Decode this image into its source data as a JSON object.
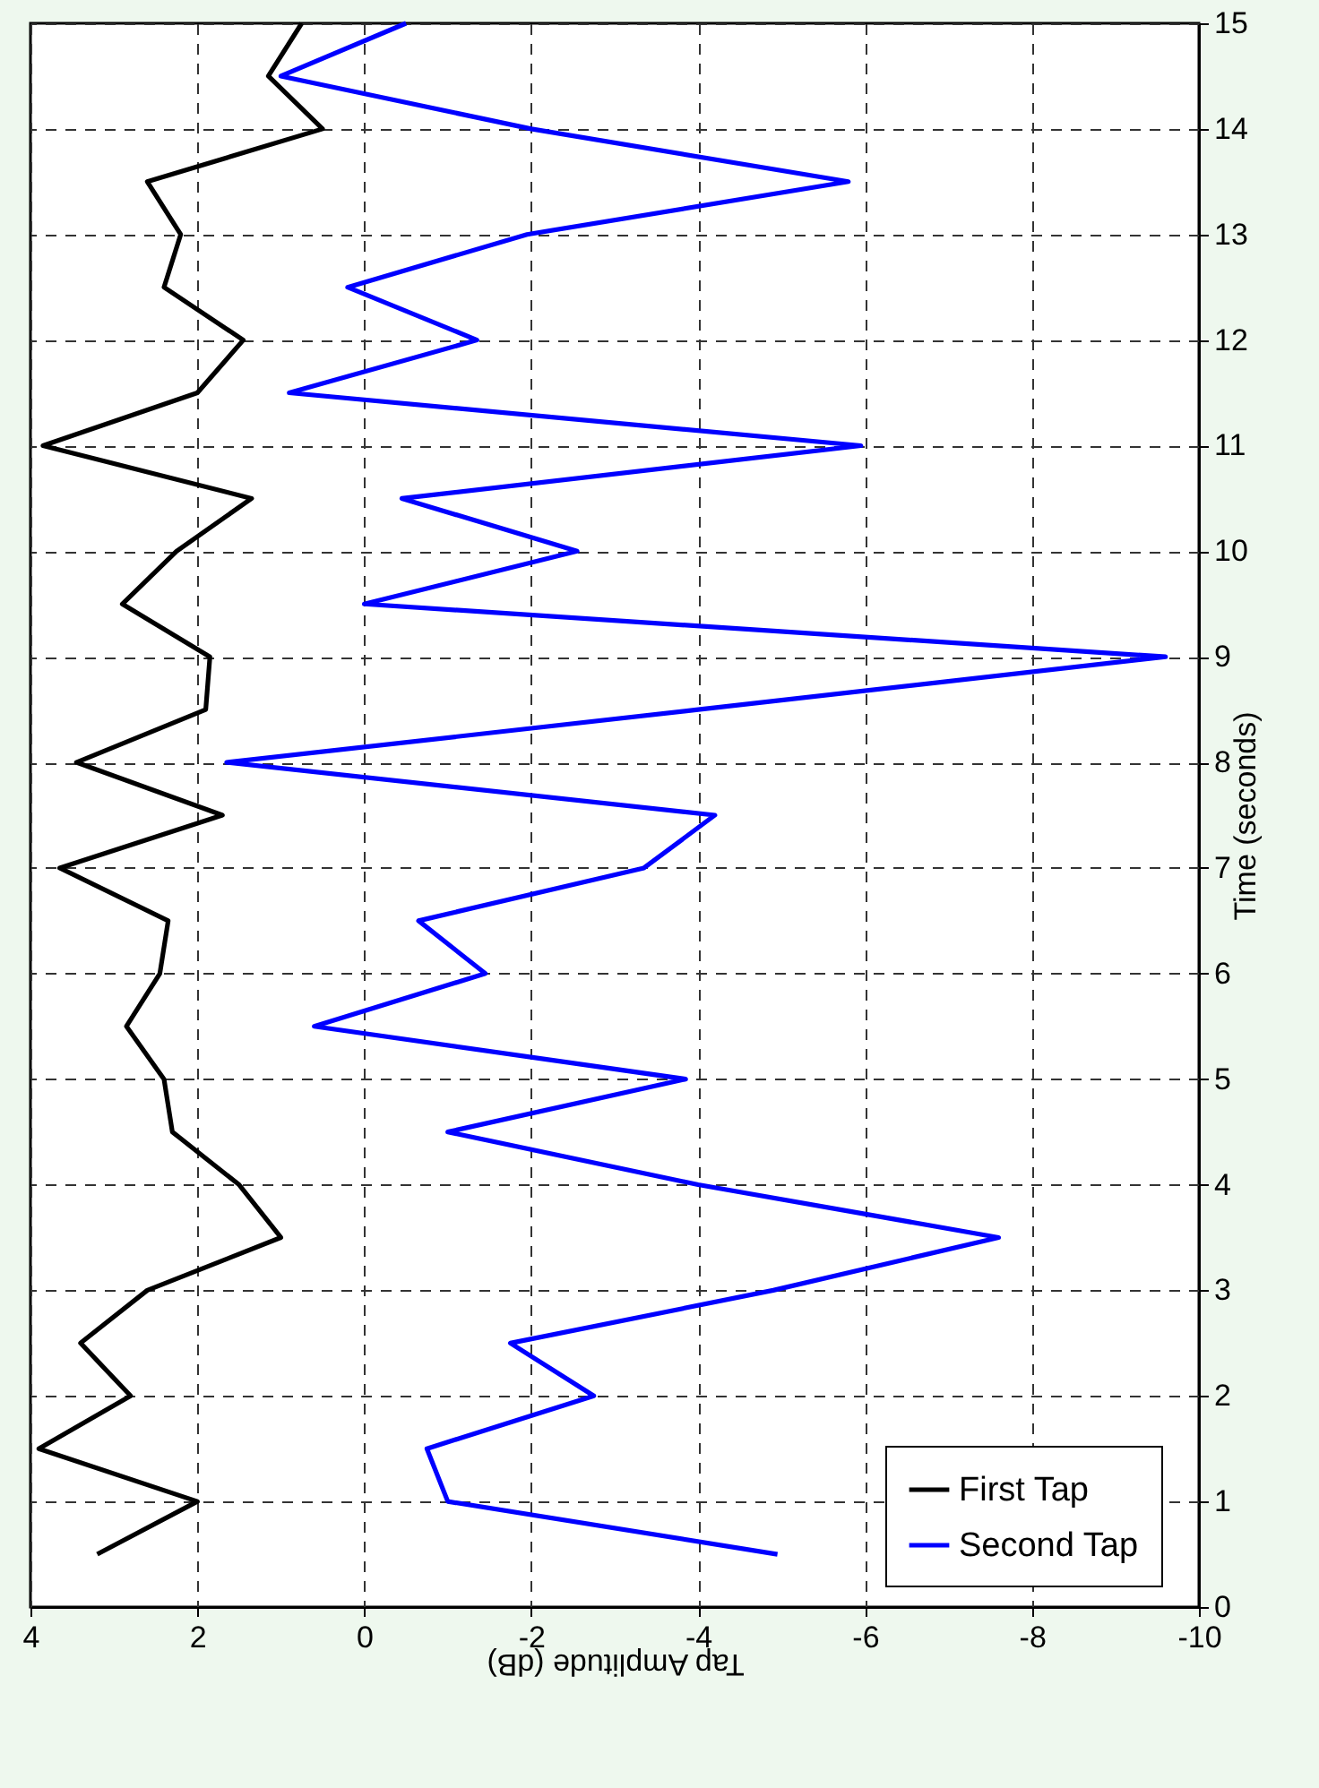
{
  "chart_data": {
    "type": "line",
    "xlabel": "Tap Amplitude (dB)",
    "ylabel": "Time (seconds)",
    "series": [
      {
        "name": "First Tap",
        "color": "#000000",
        "x": [
          3.2,
          2.0,
          3.9,
          2.8,
          3.4,
          2.6,
          1.0,
          1.5,
          2.3,
          2.4,
          2.85,
          2.45,
          2.35,
          3.65,
          1.7,
          3.45,
          1.9,
          1.85,
          2.9,
          2.25,
          1.35,
          3.85,
          2.0,
          1.45,
          2.4,
          2.2,
          2.6,
          0.5,
          1.15,
          0.75
        ],
        "values": [
          0.5,
          1,
          1.5,
          2,
          2.5,
          3,
          3.5,
          4,
          4.5,
          5,
          5.5,
          6,
          6.5,
          7,
          7.5,
          8,
          8.5,
          9,
          9.5,
          10,
          10.5,
          11,
          11.5,
          12,
          12.5,
          13,
          13.5,
          14,
          14.5,
          15
        ]
      },
      {
        "name": "Second Tap",
        "color": "#0000ff",
        "x": [
          -4.95,
          -1.0,
          -0.75,
          -2.75,
          -1.75,
          -4.9,
          -7.6,
          -4.0,
          -1.0,
          -3.85,
          0.6,
          -1.45,
          -0.65,
          -3.35,
          -4.2,
          1.65,
          -4.0,
          -9.6,
          0.0,
          -2.55,
          -0.45,
          -5.95,
          0.9,
          -1.35,
          0.2,
          -1.95,
          -5.8,
          -2.0,
          1.0,
          -0.5
        ],
        "values": [
          0.5,
          1,
          1.5,
          2,
          2.5,
          3,
          3.5,
          4,
          4.5,
          5,
          5.5,
          6,
          6.5,
          7,
          7.5,
          8,
          8.5,
          9,
          9.5,
          10,
          10.5,
          11,
          11.5,
          12,
          12.5,
          13,
          13.5,
          14,
          14.5,
          15
        ]
      }
    ],
    "xlim": [
      4,
      -10
    ],
    "xticks": [
      4,
      2,
      0,
      -2,
      -4,
      -6,
      -8,
      -10
    ],
    "ylim": [
      0,
      15
    ],
    "yticks": [
      0,
      1,
      2,
      3,
      4,
      5,
      6,
      7,
      8,
      9,
      10,
      11,
      12,
      13,
      14,
      15
    ],
    "grid": true,
    "legend": "bottom right"
  }
}
